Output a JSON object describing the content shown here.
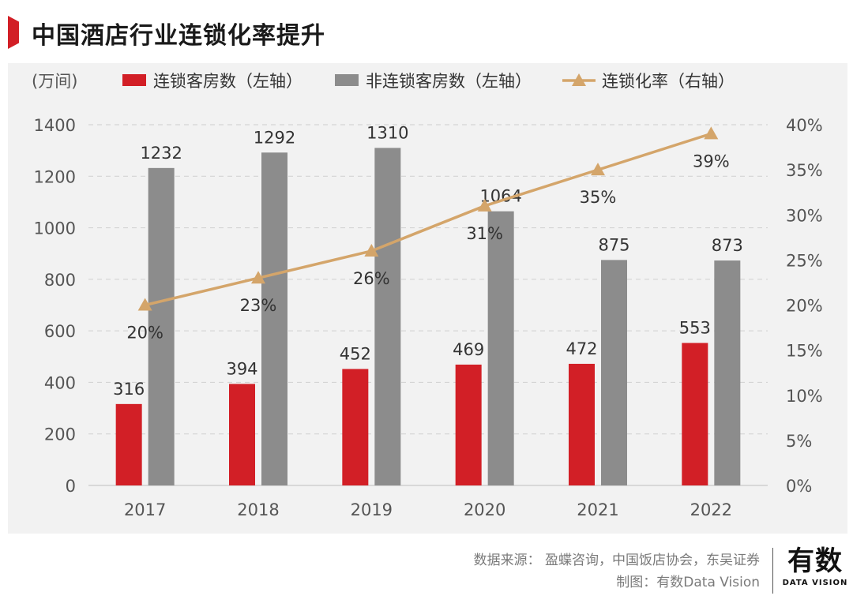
{
  "header": {
    "title": "中国酒店行业连锁化率提升"
  },
  "chart_data": {
    "type": "bar",
    "title": "中国酒店行业连锁化率提升",
    "y_unit_label": "(万间)",
    "categories": [
      "2017",
      "2018",
      "2019",
      "2020",
      "2021",
      "2022"
    ],
    "series": [
      {
        "name": "连锁客房数（左轴）",
        "type": "bar",
        "axis": "left",
        "color": "#d21f26",
        "values": [
          316,
          394,
          452,
          469,
          472,
          553
        ]
      },
      {
        "name": "非连锁客房数（左轴）",
        "type": "bar",
        "axis": "left",
        "color": "#8c8c8c",
        "values": [
          1232,
          1292,
          1310,
          1064,
          875,
          873
        ]
      },
      {
        "name": "连锁化率（右轴）",
        "type": "line",
        "axis": "right",
        "color": "#d4a56a",
        "values": [
          20,
          23,
          26,
          31,
          35,
          39
        ],
        "labels": [
          "20%",
          "23%",
          "26%",
          "31%",
          "35%",
          "39%"
        ]
      }
    ],
    "ylim_left": [
      0,
      1400
    ],
    "left_ticks": [
      "0",
      "200",
      "400",
      "600",
      "800",
      "1000",
      "1200",
      "1400"
    ],
    "ylim_right": [
      0,
      40
    ],
    "right_ticks": [
      "0%",
      "5%",
      "10%",
      "15%",
      "20%",
      "25%",
      "30%",
      "35%",
      "40%"
    ],
    "grid": true,
    "legend_position": "top"
  },
  "footer": {
    "source": "数据来源： 盈蝶咨询，中国饭店协会，东吴证券",
    "credit": "制图：有数Data Vision"
  },
  "logo": {
    "main": "有数",
    "sub": "DATA VISION"
  }
}
